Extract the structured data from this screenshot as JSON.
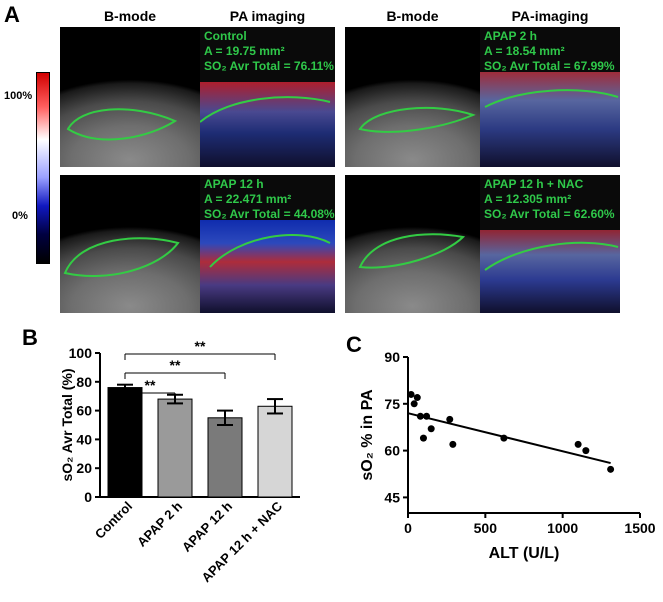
{
  "panels": {
    "A": "A",
    "B": "B",
    "C": "C"
  },
  "panel_a": {
    "col_headers": [
      "B-mode",
      "PA imaging",
      "B-mode",
      "PA-imaging"
    ],
    "colorbar": {
      "top_label": "100%",
      "bottom_label": "0%"
    },
    "images": [
      {
        "group": "Control",
        "area": "A = 19.75 mm²",
        "so2": "SO₂ Avr Total = 76.11%"
      },
      {
        "group": "APAP 2 h",
        "area": "A = 18.54 mm²",
        "so2": "SO₂ Avr Total = 67.99%"
      },
      {
        "group": "APAP 12 h",
        "area": "A = 22.471 mm²",
        "so2": "SO₂ Avr Total = 44.08%"
      },
      {
        "group": "APAP 12 h + NAC",
        "area": "A = 12.305 mm²",
        "so2": "SO₂ Avr Total = 62.60%"
      }
    ]
  },
  "chart_data": [
    {
      "type": "bar",
      "panel": "B",
      "categories": [
        "Control",
        "APAP 2 h",
        "APAP 12 h",
        "APAP 12 h + NAC"
      ],
      "values": [
        76,
        68,
        55,
        63
      ],
      "errors": [
        2,
        3,
        5,
        5
      ],
      "bar_colors": [
        "#000000",
        "#9a9a9a",
        "#7a7a7a",
        "#d6d6d6"
      ],
      "ylabel": "sO₂ Avr Total (%)",
      "ylim": [
        0,
        100
      ],
      "yticks": [
        0,
        20,
        40,
        60,
        80,
        100
      ],
      "significance": [
        {
          "from": "Control",
          "to": "APAP 2 h",
          "label": "**"
        },
        {
          "from": "Control",
          "to": "APAP 12 h",
          "label": "**"
        },
        {
          "from": "Control",
          "to": "APAP 12 h + NAC",
          "label": "**"
        }
      ]
    },
    {
      "type": "scatter",
      "panel": "C",
      "x": [
        20,
        40,
        60,
        80,
        100,
        120,
        150,
        270,
        290,
        620,
        1100,
        1150,
        1310
      ],
      "y": [
        78,
        75,
        77,
        71,
        64,
        71,
        67,
        70,
        62,
        64,
        62,
        60,
        54
      ],
      "trendline": {
        "x": [
          0,
          1310
        ],
        "y": [
          72,
          56
        ]
      },
      "xlabel": "ALT (U/L)",
      "ylabel": "sO₂ % in PA",
      "xlim": [
        0,
        1500
      ],
      "ylim": [
        40,
        90
      ],
      "xticks": [
        0,
        500,
        1000,
        1500
      ],
      "yticks": [
        45,
        60,
        75,
        90
      ]
    }
  ]
}
